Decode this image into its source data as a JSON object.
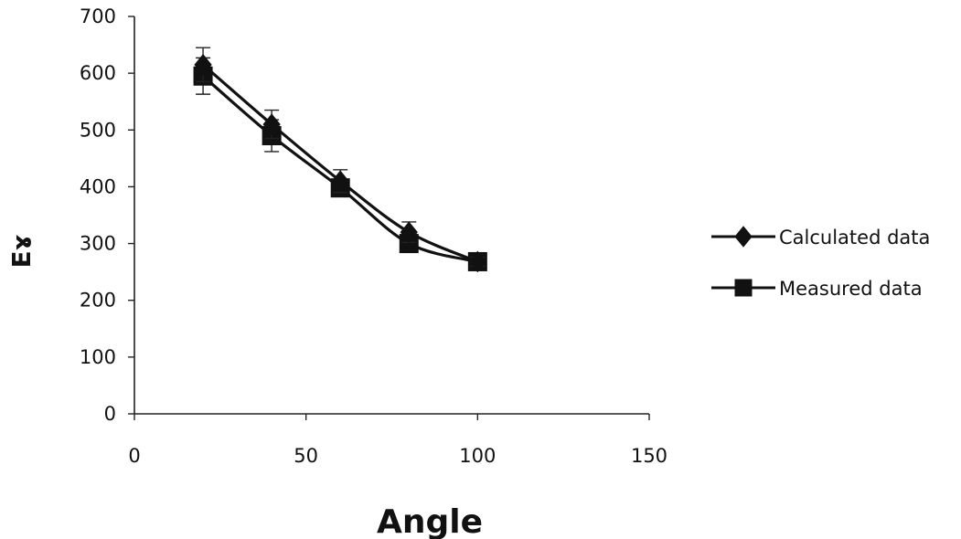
{
  "chart_data": {
    "type": "line",
    "title": "",
    "xlabel": "Angle",
    "ylabel": "Eɤ",
    "xlim": [
      0,
      150
    ],
    "ylim": [
      0,
      700
    ],
    "x_ticks": [
      "0",
      "50",
      "100",
      "150"
    ],
    "y_ticks": [
      "0",
      "100",
      "200",
      "300",
      "400",
      "500",
      "600",
      "700"
    ],
    "grid": false,
    "legend_position": "right",
    "series": [
      {
        "name": "Calculated data",
        "marker": "diamond",
        "color": "#111111",
        "x": [
          20,
          40,
          60,
          80,
          100
        ],
        "y": [
          615,
          510,
          410,
          320,
          268
        ],
        "error_bars": [
          30,
          25,
          20,
          18,
          8
        ]
      },
      {
        "name": "Measured data",
        "marker": "square",
        "color": "#111111",
        "x": [
          20,
          40,
          60,
          80,
          100
        ],
        "y": [
          595,
          490,
          398,
          300,
          268
        ],
        "error_bars": [
          32,
          28,
          0,
          0,
          0
        ]
      }
    ]
  }
}
